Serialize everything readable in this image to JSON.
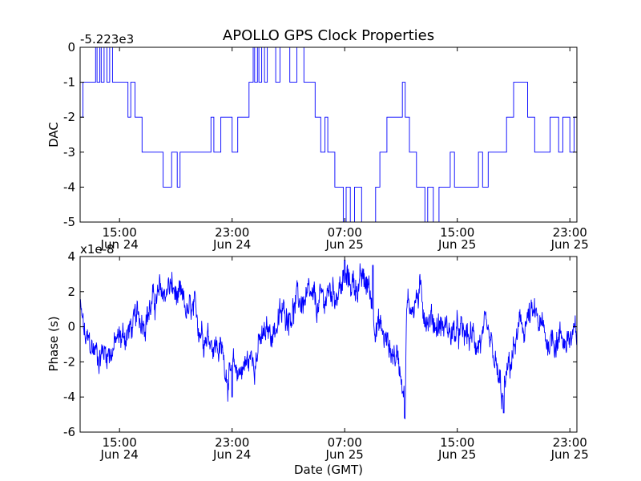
{
  "figure": {
    "title": "APOLLO GPS Clock Properties",
    "xlabel": "Date (GMT)",
    "x_ticks": [
      {
        "time": "15:00",
        "date": "Jun 24",
        "t": 15
      },
      {
        "time": "23:00",
        "date": "Jun 24",
        "t": 23
      },
      {
        "time": "07:00",
        "date": "Jun 25",
        "t": 31
      },
      {
        "time": "15:00",
        "date": "Jun 25",
        "t": 39
      },
      {
        "time": "23:00",
        "date": "Jun 25",
        "t": 47
      }
    ],
    "xlim": [
      12.2,
      47.5
    ]
  },
  "colors": {
    "line": "#0000ff",
    "axes": "#000000",
    "background": "#ffffff"
  },
  "chart_data": [
    {
      "type": "line",
      "ylabel": "DAC",
      "offset_label": "-5.223e3",
      "ylim": [
        -5,
        0
      ],
      "y_ticks": [
        0,
        -1,
        -2,
        -3,
        -4,
        -5
      ],
      "x_unit": "hours since Jun 24 00:00 GMT",
      "series": [
        {
          "name": "DAC",
          "levels": [
            [
              12.2,
              -2
            ],
            [
              12.4,
              -1
            ],
            [
              13.3,
              0
            ],
            [
              13.4,
              -1
            ],
            [
              13.6,
              0
            ],
            [
              13.7,
              -1
            ],
            [
              13.9,
              0
            ],
            [
              14.1,
              -1
            ],
            [
              14.3,
              0
            ],
            [
              14.5,
              -1
            ],
            [
              15.6,
              -2
            ],
            [
              15.8,
              -1
            ],
            [
              16.1,
              -2
            ],
            [
              16.6,
              -3
            ],
            [
              18.1,
              -4
            ],
            [
              18.7,
              -3
            ],
            [
              19.1,
              -4
            ],
            [
              19.3,
              -3
            ],
            [
              21.5,
              -2
            ],
            [
              21.7,
              -3
            ],
            [
              22.2,
              -2
            ],
            [
              23.0,
              -3
            ],
            [
              23.4,
              -2
            ],
            [
              24.2,
              -1
            ],
            [
              24.5,
              0
            ],
            [
              24.6,
              -1
            ],
            [
              24.8,
              0
            ],
            [
              24.9,
              -1
            ],
            [
              25.1,
              0
            ],
            [
              25.3,
              -1
            ],
            [
              25.5,
              0
            ],
            [
              26.1,
              -1
            ],
            [
              26.4,
              0
            ],
            [
              27.1,
              -1
            ],
            [
              27.6,
              0
            ],
            [
              28.1,
              -1
            ],
            [
              28.9,
              -2
            ],
            [
              29.3,
              -3
            ],
            [
              29.6,
              -2
            ],
            [
              29.8,
              -3
            ],
            [
              30.3,
              -4
            ],
            [
              30.9,
              -5
            ],
            [
              31.1,
              -4
            ],
            [
              31.4,
              -5
            ],
            [
              31.7,
              -4
            ],
            [
              32.2,
              -5
            ],
            [
              33.2,
              -4
            ],
            [
              33.5,
              -3
            ],
            [
              34.0,
              -2
            ],
            [
              35.1,
              -1
            ],
            [
              35.3,
              -2
            ],
            [
              35.6,
              -3
            ],
            [
              36.1,
              -4
            ],
            [
              36.7,
              -5
            ],
            [
              36.9,
              -4
            ],
            [
              37.3,
              -5
            ],
            [
              37.7,
              -4
            ],
            [
              38.5,
              -3
            ],
            [
              38.8,
              -4
            ],
            [
              40.5,
              -3
            ],
            [
              40.8,
              -4
            ],
            [
              41.2,
              -3
            ],
            [
              42.5,
              -2
            ],
            [
              43.0,
              -1
            ],
            [
              44.0,
              -2
            ],
            [
              44.5,
              -3
            ],
            [
              45.6,
              -2
            ],
            [
              46.2,
              -3
            ],
            [
              46.5,
              -2
            ],
            [
              47.0,
              -3
            ],
            [
              47.3,
              -2
            ]
          ]
        }
      ]
    },
    {
      "type": "line",
      "ylabel": "Phase (s)",
      "offset_label": "x1e-8",
      "ylim": [
        -6,
        4
      ],
      "y_ticks": [
        4,
        2,
        0,
        -2,
        -4,
        -6
      ],
      "x_unit": "hours since Jun 24 00:00 GMT",
      "series": [
        {
          "name": "Phase",
          "anchors": [
            [
              12.2,
              1.0
            ],
            [
              12.6,
              -1.0
            ],
            [
              13.5,
              -1.5
            ],
            [
              14.5,
              -1.2
            ],
            [
              15.3,
              -0.5
            ],
            [
              16.0,
              0.0
            ],
            [
              17.0,
              1.0
            ],
            [
              18.0,
              1.8
            ],
            [
              18.6,
              2.3
            ],
            [
              19.5,
              1.0
            ],
            [
              20.5,
              0.3
            ],
            [
              21.5,
              -0.5
            ],
            [
              22.3,
              -1.5
            ],
            [
              22.8,
              -2.8
            ],
            [
              23.4,
              -2.5
            ],
            [
              24.2,
              -2.0
            ],
            [
              25.0,
              -1.0
            ],
            [
              26.0,
              0.0
            ],
            [
              27.0,
              1.0
            ],
            [
              28.0,
              1.5
            ],
            [
              29.0,
              1.0
            ],
            [
              30.0,
              2.0
            ],
            [
              31.0,
              2.5
            ],
            [
              32.0,
              2.5
            ],
            [
              32.7,
              2.3
            ],
            [
              33.2,
              0.5
            ],
            [
              34.0,
              -1.0
            ],
            [
              34.8,
              -1.8
            ],
            [
              35.2,
              -3.0
            ],
            [
              35.3,
              -4.5
            ],
            [
              35.4,
              1.0
            ],
            [
              36.3,
              1.8
            ],
            [
              37.0,
              0.5
            ],
            [
              38.0,
              0.0
            ],
            [
              39.0,
              -0.5
            ],
            [
              40.0,
              -0.7
            ],
            [
              41.0,
              -0.8
            ],
            [
              41.6,
              -2.0
            ],
            [
              42.2,
              -4.2
            ],
            [
              42.8,
              -2.0
            ],
            [
              43.2,
              -0.8
            ],
            [
              44.0,
              0.5
            ],
            [
              44.7,
              0.3
            ],
            [
              45.3,
              -0.8
            ],
            [
              46.0,
              -0.5
            ],
            [
              47.5,
              -0.8
            ]
          ],
          "spikes": [
            [
              33.0,
              3.5
            ],
            [
              35.25,
              -5.2
            ],
            [
              42.3,
              -4.9
            ],
            [
              31.0,
              3.8
            ],
            [
              23.0,
              -4.0
            ]
          ]
        }
      ]
    }
  ]
}
